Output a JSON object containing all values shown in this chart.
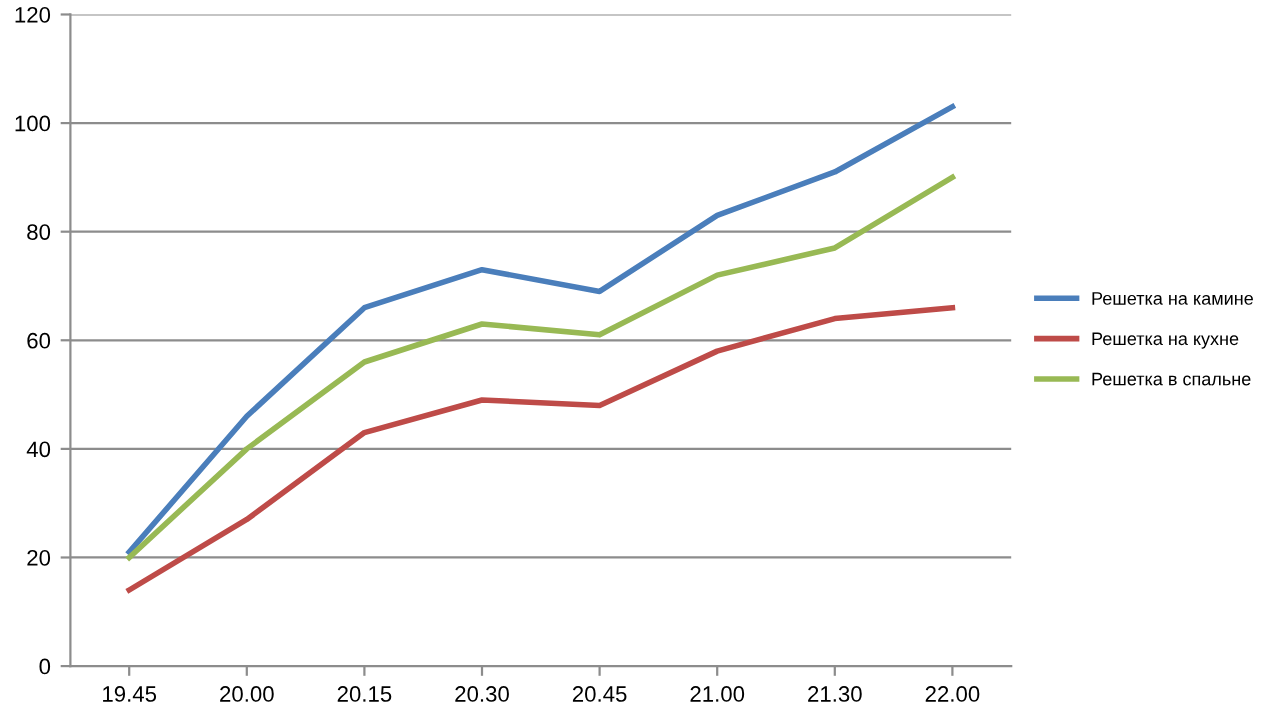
{
  "chart_data": {
    "type": "line",
    "categories": [
      "19.45",
      "20.00",
      "20.15",
      "20.30",
      "20.45",
      "21.00",
      "21.30",
      "22.00"
    ],
    "series": [
      {
        "name": "Решетка на камине",
        "color": "#4a7ebb",
        "values": [
          21,
          46,
          66,
          73,
          69,
          83,
          91,
          103
        ]
      },
      {
        "name": "Решетка на кухне",
        "color": "#be4b48",
        "values": [
          14,
          27,
          43,
          49,
          48,
          58,
          64,
          66
        ]
      },
      {
        "name": "Решетка в спальне",
        "color": "#98b954",
        "values": [
          20,
          40,
          56,
          63,
          61,
          72,
          77,
          90
        ]
      }
    ],
    "ylim": [
      0,
      120
    ],
    "yticks": [
      0,
      20,
      40,
      60,
      80,
      100,
      120
    ],
    "grid": "y",
    "legend": "right",
    "marker": "none",
    "line_style": "solid"
  }
}
